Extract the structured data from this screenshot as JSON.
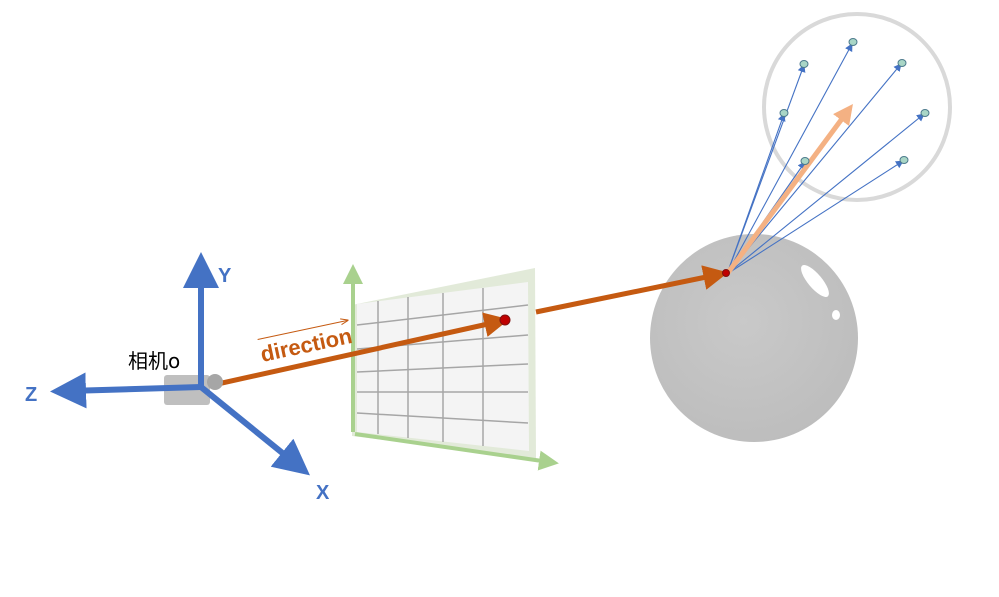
{
  "labels": {
    "axis_y": "Y",
    "axis_z": "Z",
    "axis_x": "X",
    "camera": "相机o",
    "direction": "direction"
  },
  "colors": {
    "axis_blue": "#4472C4",
    "ray_orange": "#C55A11",
    "grid_green": "#A9D18E",
    "grid_border": "#E2EAD9",
    "grid_fill": "#F4F4F4",
    "grid_line": "#A6A6A6",
    "sphere_gray": "#BFBFBF",
    "sample_ray_blue": "#4472C4",
    "sample_point_fill": "#A9D6C6",
    "normal_peach": "#F4B183",
    "hemisphere_outline": "#D9D9D9",
    "hit_point_red": "#C00000"
  },
  "icons": {
    "camera": "camera-body-icon"
  }
}
